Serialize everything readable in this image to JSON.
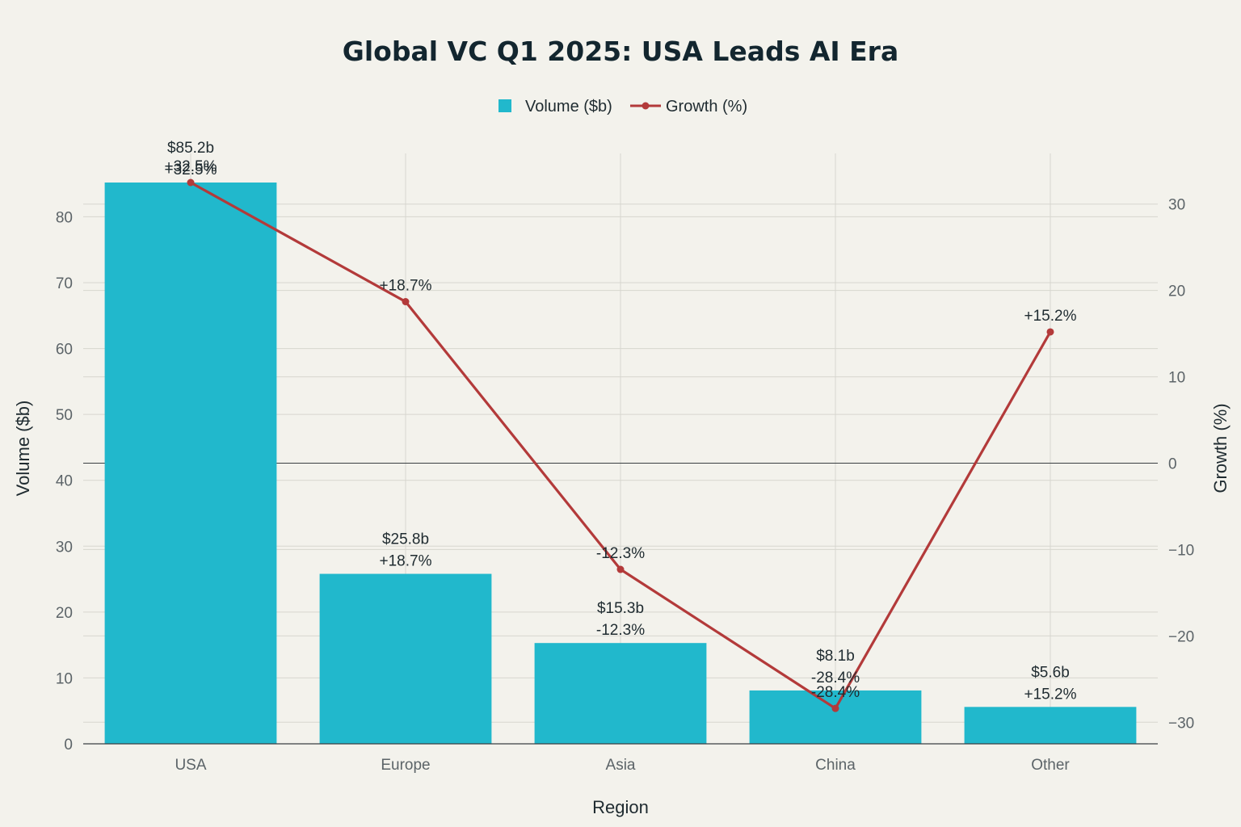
{
  "chart_data": {
    "type": "bar",
    "title": "Global VC Q1 2025: USA Leads AI Era",
    "xlabel": "Region",
    "ylabel": "Volume ($b)",
    "y2label": "Growth (%)",
    "categories": [
      "USA",
      "Europe",
      "Asia",
      "China",
      "Other"
    ],
    "series": [
      {
        "name": "Volume ($b)",
        "type": "bar",
        "axis": "left",
        "color": "#21b8cc",
        "values": [
          85.2,
          25.8,
          15.3,
          8.1,
          5.6
        ],
        "labels": [
          "$85.2b",
          "$25.8b",
          "$15.3b",
          "$8.1b",
          "$5.6b"
        ]
      },
      {
        "name": "Growth (%)",
        "type": "line",
        "axis": "right",
        "color": "#b33a3a",
        "values": [
          32.5,
          18.7,
          -12.3,
          -28.4,
          15.2
        ],
        "labels": [
          "+32.5%",
          "+18.7%",
          "-12.3%",
          "-28.4%",
          "+15.2%"
        ]
      }
    ],
    "ylim": [
      0,
      85.2
    ],
    "y2lim": [
      -32.5,
      32.5
    ],
    "yticks": [
      0,
      10,
      20,
      30,
      40,
      50,
      60,
      70,
      80
    ],
    "y2ticks": [
      -30,
      -20,
      -10,
      0,
      10,
      20,
      30
    ],
    "y2tick_labels": [
      "−30",
      "−20",
      "−10",
      "0",
      "10",
      "20",
      "30"
    ],
    "grid": true,
    "legend_position": "top-center"
  }
}
